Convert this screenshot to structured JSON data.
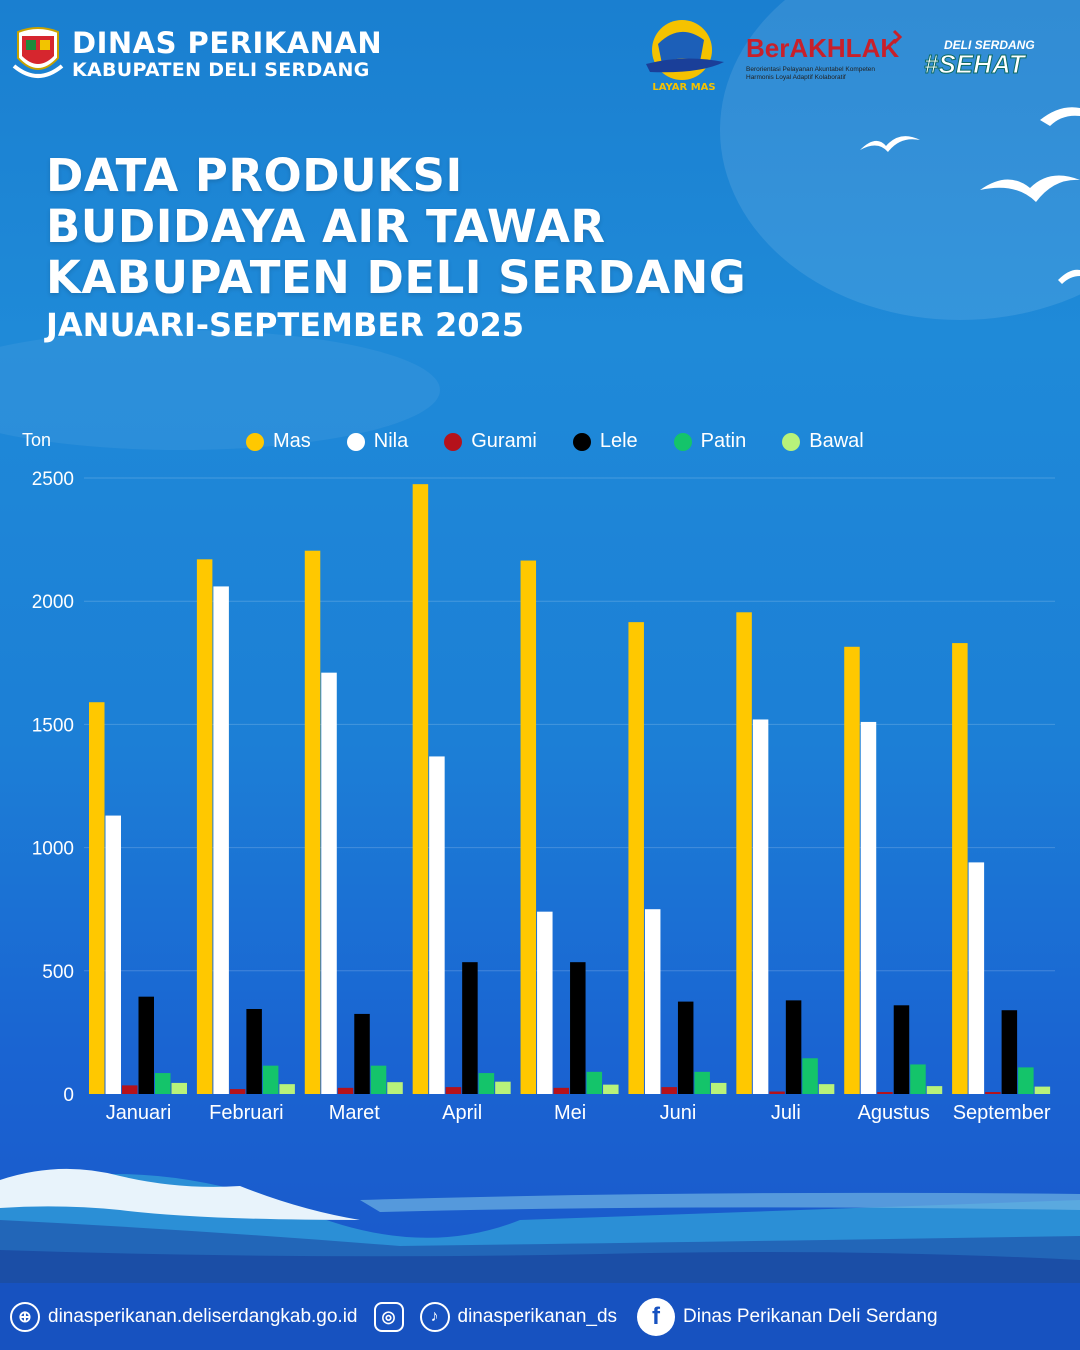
{
  "header": {
    "org_line1": "DINAS PERIKANAN",
    "org_line2": "KABUPATEN DELI SERDANG",
    "logo_layar_text": "LAYAR MAS",
    "logo_akhlak_text": "BerAKHLAK",
    "logo_akhlak_sub1": "Berorientasi Pelayanan Akuntabel Kompeten",
    "logo_akhlak_sub2": "Harmonis Loyal Adaptif Kolaboratif",
    "logo_sehat_line1": "DELI SERDANG",
    "logo_sehat_line2": "#SEHAT"
  },
  "title": {
    "line1": "DATA PRODUKSI",
    "line2": "BUDIDAYA AIR TAWAR",
    "line3": "KABUPATEN DELI SERDANG",
    "period": "JANUARI-SEPTEMBER 2025"
  },
  "chart_data": {
    "type": "bar",
    "ylabel": "Ton",
    "ylim": [
      0,
      2500
    ],
    "yticks": [
      0,
      500,
      1000,
      1500,
      2000,
      2500
    ],
    "grid": true,
    "legend_position": "top",
    "categories": [
      "Januari",
      "Februari",
      "Maret",
      "April",
      "Mei",
      "Juni",
      "Juli",
      "Agustus",
      "September"
    ],
    "series": [
      {
        "name": "Mas",
        "color": "#ffc800",
        "values": [
          1590,
          2170,
          2205,
          2475,
          2165,
          1915,
          1955,
          1815,
          1830
        ]
      },
      {
        "name": "Nila",
        "color": "#ffffff",
        "values": [
          1130,
          2060,
          1710,
          1370,
          740,
          750,
          1520,
          1510,
          940
        ]
      },
      {
        "name": "Gurami",
        "color": "#b5121b",
        "values": [
          35,
          20,
          25,
          28,
          25,
          28,
          10,
          8,
          8
        ]
      },
      {
        "name": "Lele",
        "color": "#000000",
        "values": [
          395,
          345,
          325,
          535,
          535,
          375,
          380,
          360,
          340
        ]
      },
      {
        "name": "Patin",
        "color": "#14c46a",
        "values": [
          85,
          115,
          115,
          85,
          90,
          90,
          145,
          120,
          108
        ]
      },
      {
        "name": "Bawal",
        "color": "#b8f27a",
        "values": [
          45,
          40,
          48,
          50,
          38,
          45,
          40,
          32,
          30
        ]
      }
    ]
  },
  "footer": {
    "website": "dinasperikanan.deliserdangkab.go.id",
    "social_handle": "dinasperikanan_ds",
    "facebook": "Dinas Perikanan Deli Serdang",
    "web_icon": "globe-icon",
    "instagram_icon": "instagram-icon",
    "tiktok_icon": "tiktok-icon",
    "facebook_icon": "facebook-icon"
  }
}
